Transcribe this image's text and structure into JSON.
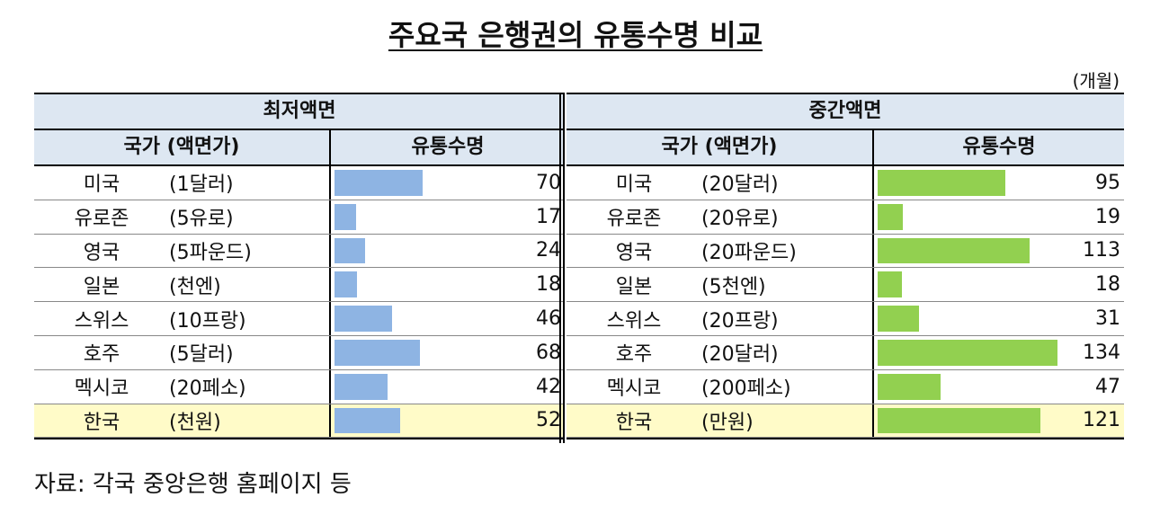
{
  "title": "주요국 은행권의 유통수명 비교",
  "unit": "(개월)",
  "source": "자료: 각국 중앙은행 홈페이지 등",
  "header": {
    "country_col": "국가 (액면가)",
    "life_col": "유통수명"
  },
  "chart_data": [
    {
      "type": "bar",
      "title": "최저액면",
      "max_value": 70,
      "categories": [
        "미국",
        "유로존",
        "영국",
        "일본",
        "스위스",
        "호주",
        "멕시코",
        "한국"
      ],
      "notes": [
        "(1달러)",
        "(5유로)",
        "(5파운드)",
        "(천엔)",
        "(10프랑)",
        "(5달러)",
        "(20페소)",
        "(천원)"
      ],
      "values": [
        70,
        17,
        24,
        18,
        46,
        68,
        42,
        52
      ],
      "highlight_index": 7,
      "bar_color": "#8eb4e3"
    },
    {
      "type": "bar",
      "title": "중간액면",
      "max_value": 134,
      "categories": [
        "미국",
        "유로존",
        "영국",
        "일본",
        "스위스",
        "호주",
        "멕시코",
        "한국"
      ],
      "notes": [
        "(20달러)",
        "(20유로)",
        "(20파운드)",
        "(5천엔)",
        "(20프랑)",
        "(20달러)",
        "(200페소)",
        "(만원)"
      ],
      "values": [
        95,
        19,
        113,
        18,
        31,
        134,
        47,
        121
      ],
      "highlight_index": 7,
      "bar_color": "#92d050"
    }
  ]
}
